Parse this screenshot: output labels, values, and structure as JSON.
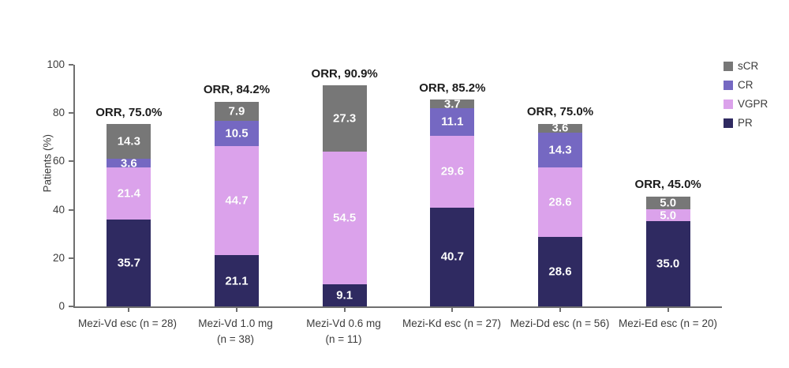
{
  "chart_data": {
    "type": "bar",
    "stacked": true,
    "title": "",
    "xlabel": "",
    "ylabel": "Patients (%)",
    "ylim": [
      0,
      100
    ],
    "yticks": [
      0,
      20,
      40,
      60,
      80,
      100
    ],
    "grid": false,
    "legend_position": "top-right",
    "legend_order": [
      "sCR",
      "CR",
      "VGPR",
      "PR"
    ],
    "categories": [
      {
        "line1": "Mezi-Vd esc (n = 28)",
        "line2": ""
      },
      {
        "line1": "Mezi-Vd 1.0 mg",
        "line2": "(n = 38)"
      },
      {
        "line1": "Mezi-Vd 0.6 mg",
        "line2": "(n = 11)"
      },
      {
        "line1": "Mezi-Kd esc (n = 27)",
        "line2": ""
      },
      {
        "line1": "Mezi-Dd esc (n = 56)",
        "line2": ""
      },
      {
        "line1": "Mezi-Ed esc (n = 20)",
        "line2": ""
      }
    ],
    "annotations": [
      "ORR, 75.0%",
      "ORR, 84.2%",
      "ORR, 90.9%",
      "ORR, 85.2%",
      "ORR, 75.0%",
      "ORR, 45.0%"
    ],
    "series": [
      {
        "name": "PR",
        "color": "#2f2a61",
        "values": [
          35.7,
          21.1,
          9.1,
          40.7,
          28.6,
          35.0
        ]
      },
      {
        "name": "VGPR",
        "color": "#dba2eb",
        "values": [
          21.4,
          44.7,
          54.5,
          29.6,
          28.6,
          5.0
        ]
      },
      {
        "name": "CR",
        "color": "#7568c2",
        "values": [
          3.6,
          10.5,
          null,
          11.1,
          14.3,
          null
        ]
      },
      {
        "name": "sCR",
        "color": "#777777",
        "values": [
          14.3,
          7.9,
          27.3,
          3.7,
          3.6,
          5.0
        ]
      }
    ],
    "orr_totals": [
      75.0,
      84.2,
      90.9,
      85.2,
      75.0,
      45.0
    ]
  },
  "colors": {
    "background": "#ffffff",
    "axis_line": "#6f6f6f",
    "tick_text": "#3d3d3d",
    "annotation_text": "#1c1c1c",
    "segment_label_text": "#ffffff"
  }
}
